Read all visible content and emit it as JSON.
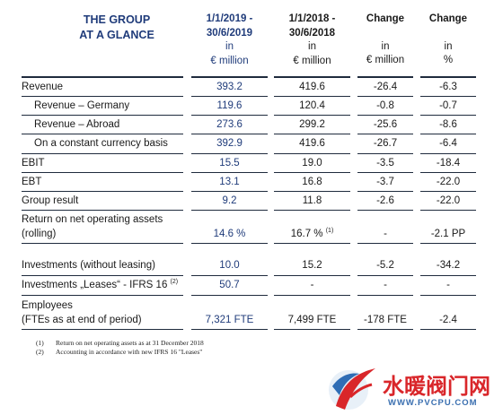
{
  "header": {
    "title_line1": "THE GROUP",
    "title_line2": "AT A GLANCE",
    "current": {
      "line1": "1/1/2019 -",
      "line2": "30/6/2019",
      "unit1": "in",
      "unit2": "€ million"
    },
    "previous": {
      "line1": "1/1/2018 -",
      "line2": "30/6/2018",
      "unit1": "in",
      "unit2": "€ million"
    },
    "change_abs": {
      "line1": "Change",
      "unit1": "in",
      "unit2": "€ million"
    },
    "change_pct": {
      "line1": "Change",
      "unit1": "in",
      "unit2": "%"
    }
  },
  "rows": [
    {
      "label": "Revenue",
      "cur": "393.2",
      "prev": "419.6",
      "chg": "-26.4",
      "pct": "-6.3"
    },
    {
      "label": "Revenue – Germany",
      "cur": "119.6",
      "prev": "120.4",
      "chg": "-0.8",
      "pct": "-0.7"
    },
    {
      "label": "Revenue – Abroad",
      "cur": "273.6",
      "prev": "299.2",
      "chg": "-25.6",
      "pct": "-8.6"
    },
    {
      "label": "On a constant currency basis",
      "cur": "392.9",
      "prev": "419.6",
      "chg": "-26.7",
      "pct": "-6.4"
    },
    {
      "label": "EBIT",
      "cur": "15.5",
      "prev": "19.0",
      "chg": "-3.5",
      "pct": "-18.4"
    },
    {
      "label": "EBT",
      "cur": "13.1",
      "prev": "16.8",
      "chg": "-3.7",
      "pct": "-22.0"
    },
    {
      "label": "Group result",
      "cur": "9.2",
      "prev": "11.8",
      "chg": "-2.6",
      "pct": "-22.0"
    },
    {
      "label1": "Return on net operating assets",
      "label2": "(rolling)",
      "cur": "14.6 %",
      "prev": "16.7 %",
      "prev_note": "(1)",
      "chg": "-",
      "pct": "-2.1 PP"
    },
    {
      "label": "Investments (without leasing)",
      "cur": "10.0",
      "prev": "15.2",
      "chg": "-5.2",
      "pct": "-34.2"
    },
    {
      "label": "Investments „Leases“ - IFRS 16",
      "label_note": "(2)",
      "cur": "50.7",
      "prev": "-",
      "chg": "-",
      "pct": "-"
    },
    {
      "label1": "Employees",
      "label2": "(FTEs as at end of period)",
      "cur": "7,321 FTE",
      "prev": "7,499 FTE",
      "chg": "-178 FTE",
      "pct": "-2.4"
    }
  ],
  "footnotes": [
    {
      "num": "(1)",
      "text": "Return on net operating assets as at 31 December 2018"
    },
    {
      "num": "(2)",
      "text": "Accounting in accordance with new IFRS 16 \"Leases\""
    }
  ],
  "watermark": {
    "text": "水暖阀门网",
    "url": "WWW.PVCPU.COM",
    "accent": "#d9262a"
  },
  "colors": {
    "highlight_blue": "#1f3b7a",
    "rule": "#1f2b3d"
  }
}
